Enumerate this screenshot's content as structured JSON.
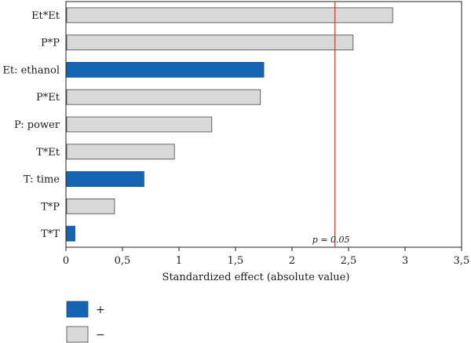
{
  "chart_data": {
    "type": "bar",
    "orientation": "horizontal",
    "categories": [
      "Et*Et",
      "P*P",
      "Et: ethanol",
      "P*Et",
      "P: power",
      "T*Et",
      "T: time",
      "T*P",
      "T*T"
    ],
    "values": [
      2.89,
      2.54,
      1.75,
      1.72,
      1.29,
      0.96,
      0.69,
      0.43,
      0.08
    ],
    "signs": [
      "-",
      "-",
      "+",
      "-",
      "-",
      "-",
      "+",
      "-",
      "+"
    ],
    "xlabel": "Standardized effect (absolute value)",
    "xlim": [
      0,
      3.5
    ],
    "xticks": [
      "0",
      "0,5",
      "1",
      "1,5",
      "2",
      "2,5",
      "3",
      "3,5"
    ],
    "reference_line": {
      "value": 2.38,
      "label": "p = 0.05",
      "color": "#c0392b"
    },
    "colors": {
      "positive": "#1565b3",
      "negative": "#d9d9d9"
    },
    "legend": {
      "position": "bottom-left",
      "items": [
        {
          "label": "+",
          "key": "positive"
        },
        {
          "label": "−",
          "key": "negative"
        }
      ]
    },
    "grid": false
  }
}
